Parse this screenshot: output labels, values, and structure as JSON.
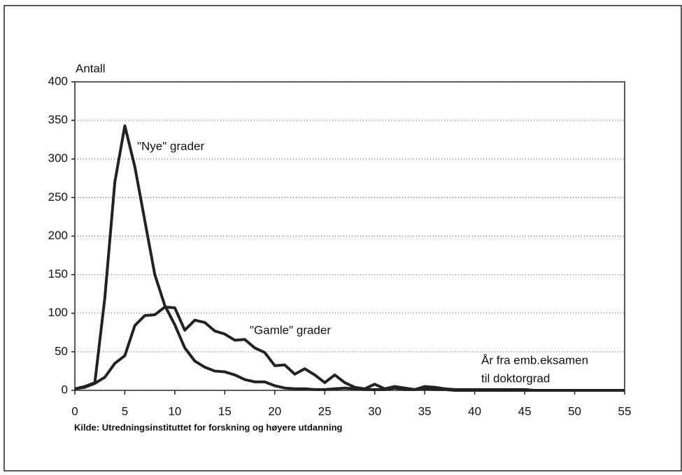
{
  "chart_data": {
    "type": "line",
    "y_label": "Antall",
    "x_label": [
      "År fra emb.eksamen",
      "til doktorgrad"
    ],
    "source": "Kilde: Utredningsinstituttet for forskning og høyere utdanning",
    "x": [
      0,
      1,
      2,
      3,
      4,
      5,
      6,
      7,
      8,
      9,
      10,
      11,
      12,
      13,
      14,
      15,
      16,
      17,
      18,
      19,
      20,
      21,
      22,
      23,
      24,
      25,
      26,
      27,
      28,
      29,
      30,
      31,
      32,
      33,
      34,
      35,
      36,
      37,
      38,
      39,
      40,
      41,
      42,
      43,
      44,
      45,
      46,
      47,
      48,
      49,
      50,
      51,
      52,
      53,
      54,
      55
    ],
    "series": [
      {
        "name": "\"Nye\" grader",
        "color": "#222222",
        "values": [
          2,
          5,
          10,
          120,
          270,
          343,
          290,
          220,
          150,
          110,
          85,
          55,
          38,
          30,
          25,
          24,
          20,
          14,
          11,
          11,
          6,
          3,
          2,
          2,
          1,
          1,
          2,
          3,
          2,
          1,
          1,
          1,
          3,
          1,
          1,
          2,
          1,
          1,
          0,
          0,
          0,
          0,
          0,
          0,
          0,
          0,
          0,
          0,
          0,
          0,
          0,
          0,
          0,
          0,
          0,
          0
        ]
      },
      {
        "name": "\"Gamle\" grader",
        "color": "#222222",
        "values": [
          2,
          4,
          9,
          17,
          35,
          45,
          84,
          97,
          98,
          108,
          107,
          78,
          91,
          88,
          77,
          73,
          65,
          66,
          55,
          49,
          32,
          33,
          21,
          28,
          20,
          10,
          20,
          10,
          4,
          2,
          8,
          2,
          5,
          3,
          1,
          5,
          4,
          2,
          1,
          1,
          1,
          1,
          1,
          1,
          1,
          1,
          0,
          0,
          0,
          0,
          0,
          0,
          0,
          0,
          0,
          0
        ]
      }
    ],
    "xlim": [
      0,
      55
    ],
    "xticks": [
      0,
      5,
      10,
      15,
      20,
      25,
      30,
      35,
      40,
      45,
      50,
      55
    ],
    "ylim": [
      0,
      400
    ],
    "yticks": [
      0,
      50,
      100,
      150,
      200,
      250,
      300,
      350,
      400
    ],
    "grid": true
  }
}
